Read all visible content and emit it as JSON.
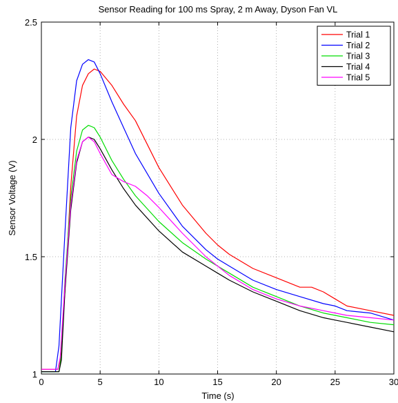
{
  "chart_data": {
    "type": "line",
    "title": "Sensor Reading for 100 ms Spray, 2 m Away, Dyson Fan VL",
    "xlabel": "Time (s)",
    "ylabel": "Sensor Voltage (V)",
    "xlim": [
      0,
      30
    ],
    "ylim": [
      1,
      2.5
    ],
    "xticks": [
      0,
      5,
      10,
      15,
      20,
      25,
      30
    ],
    "yticks": [
      1,
      1.5,
      2,
      2.5
    ],
    "grid": true,
    "legend_position": "top-right",
    "series": [
      {
        "name": "Trial 1",
        "color": "#ff0000",
        "x": [
          0,
          1.4,
          1.6,
          2,
          2.5,
          3,
          3.5,
          4,
          4.5,
          5,
          6,
          7,
          8,
          10,
          12,
          14,
          15,
          16,
          18,
          20,
          22,
          23,
          24,
          25,
          26,
          28,
          30
        ],
        "y": [
          1.02,
          1.02,
          1.06,
          1.35,
          1.8,
          2.1,
          2.23,
          2.28,
          2.3,
          2.29,
          2.23,
          2.15,
          2.08,
          1.88,
          1.72,
          1.6,
          1.55,
          1.51,
          1.45,
          1.41,
          1.37,
          1.37,
          1.35,
          1.32,
          1.29,
          1.27,
          1.25
        ]
      },
      {
        "name": "Trial 2",
        "color": "#0000ff",
        "x": [
          0,
          1.2,
          1.5,
          2,
          2.5,
          3,
          3.5,
          4,
          4.5,
          5,
          6,
          7,
          8,
          10,
          12,
          14,
          15,
          16,
          18,
          20,
          22,
          24,
          25,
          26,
          28,
          30
        ],
        "y": [
          1.01,
          1.01,
          1.12,
          1.6,
          2.05,
          2.25,
          2.32,
          2.34,
          2.33,
          2.28,
          2.16,
          2.05,
          1.94,
          1.77,
          1.63,
          1.53,
          1.49,
          1.46,
          1.4,
          1.36,
          1.33,
          1.3,
          1.29,
          1.27,
          1.26,
          1.23
        ]
      },
      {
        "name": "Trial 3",
        "color": "#00dd00",
        "x": [
          0,
          1.5,
          1.7,
          2,
          2.5,
          3,
          3.5,
          4,
          4.5,
          5,
          6,
          7,
          8,
          10,
          12,
          14,
          15,
          16,
          18,
          20,
          22,
          24,
          25,
          26,
          28,
          30
        ],
        "y": [
          1.01,
          1.01,
          1.08,
          1.4,
          1.75,
          1.95,
          2.04,
          2.06,
          2.05,
          2.01,
          1.91,
          1.83,
          1.76,
          1.65,
          1.56,
          1.49,
          1.46,
          1.43,
          1.37,
          1.33,
          1.29,
          1.26,
          1.25,
          1.24,
          1.22,
          1.21
        ]
      },
      {
        "name": "Trial 4",
        "color": "#000000",
        "x": [
          0,
          1.5,
          1.7,
          2,
          2.5,
          3,
          3.5,
          4,
          4.5,
          5,
          6,
          7,
          8,
          10,
          12,
          14,
          15,
          16,
          18,
          20,
          22,
          24,
          25,
          26,
          28,
          30
        ],
        "y": [
          1.01,
          1.01,
          1.06,
          1.35,
          1.7,
          1.9,
          1.99,
          2.01,
          2.0,
          1.96,
          1.87,
          1.79,
          1.72,
          1.61,
          1.52,
          1.46,
          1.43,
          1.4,
          1.35,
          1.31,
          1.27,
          1.24,
          1.23,
          1.22,
          1.2,
          1.18
        ]
      },
      {
        "name": "Trial 5",
        "color": "#ff00ff",
        "x": [
          0,
          1.4,
          1.6,
          2,
          2.5,
          3,
          3.5,
          4,
          4.5,
          5,
          6,
          7,
          8,
          9,
          10,
          12,
          14,
          15,
          16,
          18,
          20,
          22,
          24,
          25,
          26,
          28,
          30
        ],
        "y": [
          1.02,
          1.02,
          1.07,
          1.38,
          1.72,
          1.91,
          1.99,
          2.01,
          1.99,
          1.94,
          1.85,
          1.82,
          1.8,
          1.76,
          1.71,
          1.6,
          1.5,
          1.46,
          1.42,
          1.36,
          1.32,
          1.29,
          1.27,
          1.26,
          1.25,
          1.24,
          1.23
        ]
      }
    ]
  }
}
